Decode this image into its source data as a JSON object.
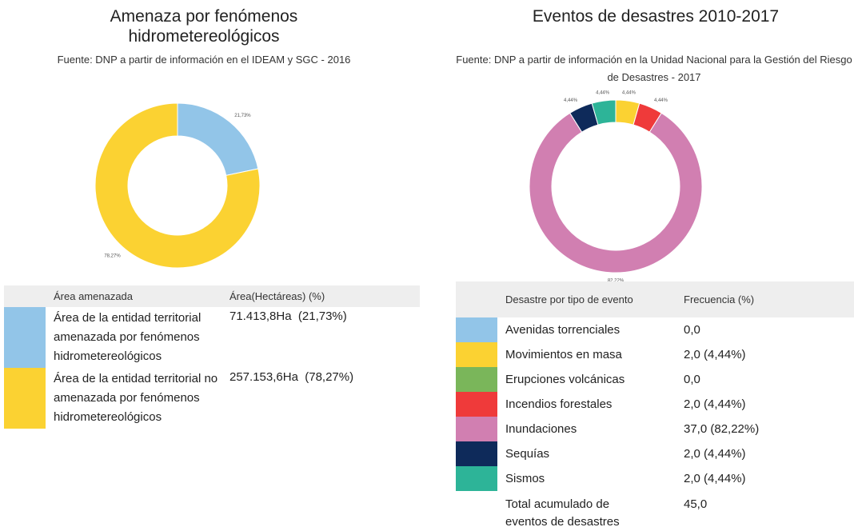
{
  "chart_data": [
    {
      "type": "donut",
      "title": "Amenaza por fenómenos hidrometereológicos",
      "subtitle": "Fuente: DNP a partir de información en el IDEAM y SGC - 2016",
      "categories": [
        "Área de la entidad territorial amenazada por fenómenos hidrometereológicos",
        "Área de la entidad territorial no amenazada por fenómenos hidrometereológicos"
      ],
      "values": [
        21.73,
        78.27
      ],
      "value_labels": [
        "21,73%",
        "78,27%"
      ],
      "colors": [
        "#92c5e8",
        "#fbd232"
      ],
      "table": {
        "headers": [
          "Área amenazada",
          "Área(Hectáreas) (%)"
        ],
        "cells": [
          "71.413,8Ha  (21,73%)",
          "257.153,6Ha  (78,27%)"
        ]
      }
    },
    {
      "type": "donut",
      "title": "Eventos de desastres 2010-2017",
      "subtitle": "Fuente: DNP a partir de información en la Unidad Nacional para la Gestión del Riesgo de Desastres - 2017",
      "categories": [
        "Avenidas torrenciales",
        "Movimientos en masa",
        "Erupciones volcánicas",
        "Incendios forestales",
        "Inundaciones",
        "Sequías",
        "Sismos"
      ],
      "values": [
        0,
        4.44,
        0,
        4.44,
        82.22,
        4.44,
        4.44
      ],
      "value_labels": [
        null,
        "4,44%",
        null,
        "4,44%",
        "82,22%",
        "4,44%",
        "4,44%"
      ],
      "colors": [
        "#92c5e8",
        "#fbd232",
        "#7ab65a",
        "#ef3a3a",
        "#d17fb1",
        "#0e2a5a",
        "#2db498"
      ],
      "table": {
        "headers": [
          "Desastre por tipo de evento",
          "Frecuencia (%)"
        ],
        "cells": [
          "0,0",
          "2,0 (4,44%)",
          "0,0",
          "2,0 (4,44%)",
          "37,0 (82,22%)",
          "2,0 (4,44%)",
          "2,0 (4,44%)"
        ],
        "total": [
          "Total acumulado de eventos de desastres",
          "45,0"
        ]
      }
    }
  ]
}
